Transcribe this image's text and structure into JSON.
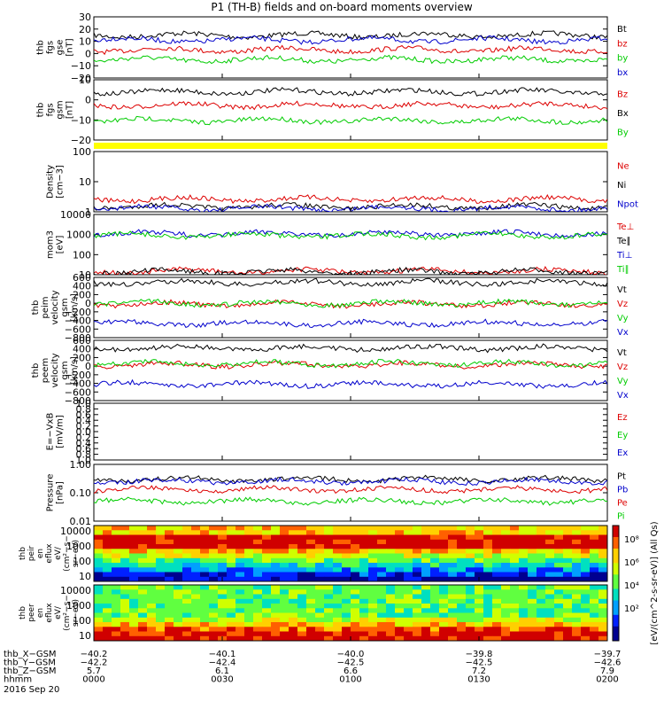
{
  "title": "P1 (TH-B) fields and on-board moments overview",
  "colors": {
    "black": "#000000",
    "red": "#dd0000",
    "green": "#00cc00",
    "blue": "#0000cc",
    "darkred": "#8b0000",
    "yellow": "#ffff00"
  },
  "chart_data": {
    "type": "line",
    "x_label": "hhmm",
    "date": "2016 Sep 20",
    "panels": [
      {
        "id": "fgs-gse",
        "ylabel": [
          "thb",
          "fgs",
          "gse",
          "[nT]"
        ],
        "scale": "linear",
        "ylim": [
          -20,
          30
        ],
        "ticks": [
          "30",
          "20",
          "10",
          "0",
          "−10",
          "−20"
        ],
        "series": [
          {
            "name": "Bt",
            "color": "black",
            "level": 15
          },
          {
            "name": "bz",
            "color": "red",
            "level": 3
          },
          {
            "name": "by",
            "color": "green",
            "level": -5
          },
          {
            "name": "bx",
            "color": "blue",
            "level": 11
          }
        ]
      },
      {
        "id": "fgs-gsm",
        "ylabel": [
          "thb",
          "fgs",
          "gsm",
          "[nT]"
        ],
        "scale": "linear",
        "ylim": [
          -20,
          20
        ],
        "ticks": [
          "10",
          "0",
          "−10",
          "−20"
        ],
        "series": [
          {
            "name": "Bz",
            "color": "red",
            "level": 3
          },
          {
            "name": "Bx",
            "color": "black",
            "level": 12
          },
          {
            "name": "By",
            "color": "green",
            "level": -7
          }
        ]
      },
      {
        "id": "density",
        "ylabel": [
          "Density",
          "[cm−3]"
        ],
        "scale": "log",
        "ylim": [
          1,
          100
        ],
        "ticks": [
          "100",
          "10",
          "1"
        ],
        "series": [
          {
            "name": "Ne",
            "color": "red",
            "level": 2.6
          },
          {
            "name": "Ni",
            "color": "black",
            "level": 1.5
          },
          {
            "name": "Npot",
            "color": "blue",
            "level": 1.3
          }
        ]
      },
      {
        "id": "temperature",
        "ylabel": [
          "mom3",
          "[eV]"
        ],
        "scale": "log",
        "ylim": [
          10,
          10000
        ],
        "ticks": [
          "10000",
          "1000",
          "100",
          "10"
        ],
        "series": [
          {
            "name": "Te⊥",
            "color": "red",
            "level": 15
          },
          {
            "name": "Te∥",
            "color": "black",
            "level": 14
          },
          {
            "name": "Ti⊥",
            "color": "blue",
            "level": 1100
          },
          {
            "name": "Ti∥",
            "color": "green",
            "level": 900
          }
        ]
      },
      {
        "id": "peim-velocity",
        "ylabel": [
          "thb",
          "peim",
          "velocity",
          "gsm",
          "[km/s]"
        ],
        "scale": "linear",
        "ylim": [
          -800,
          600
        ],
        "ticks": [
          "600",
          "400",
          "200",
          "0",
          "−200",
          "−400",
          "−600",
          "−800"
        ],
        "series": [
          {
            "name": "Vt",
            "color": "black",
            "level": 480
          },
          {
            "name": "Vz",
            "color": "red",
            "level": -20
          },
          {
            "name": "Vy",
            "color": "green",
            "level": 0
          },
          {
            "name": "Vx",
            "color": "blue",
            "level": -470
          }
        ]
      },
      {
        "id": "peem-velocity",
        "ylabel": [
          "thb",
          "peem",
          "velocity",
          "gsm",
          "[km/s]"
        ],
        "scale": "linear",
        "ylim": [
          -800,
          600
        ],
        "ticks": [
          "600",
          "400",
          "200",
          "0",
          "−200",
          "−400",
          "−600",
          "−800"
        ],
        "series": [
          {
            "name": "Vt",
            "color": "black",
            "level": 420
          },
          {
            "name": "Vz",
            "color": "red",
            "level": 30
          },
          {
            "name": "Vy",
            "color": "green",
            "level": 60
          },
          {
            "name": "Vx",
            "color": "blue",
            "level": -420
          }
        ]
      },
      {
        "id": "efield",
        "ylabel": [
          "E=−VxB",
          "[mV/m]"
        ],
        "scale": "linear",
        "ylim": [
          -1,
          1
        ],
        "ticks": [
          "1.0",
          "0.8",
          "0.6",
          "0.4",
          "0.2",
          "0.0",
          "0.2",
          "0.4",
          "0.6",
          "0.8",
          "1.0"
        ],
        "series": [
          {
            "name": "Ez",
            "color": "red"
          },
          {
            "name": "Ey",
            "color": "green"
          },
          {
            "name": "Ex",
            "color": "blue"
          }
        ]
      },
      {
        "id": "pressure",
        "ylabel": [
          "Pressure",
          "[nPa]"
        ],
        "scale": "log",
        "ylim": [
          0.01,
          1
        ],
        "ticks": [
          "1.00",
          "0.10",
          "0.01"
        ],
        "series": [
          {
            "name": "Pt",
            "color": "black",
            "level": 0.3
          },
          {
            "name": "Pb",
            "color": "blue",
            "level": 0.25
          },
          {
            "name": "Pe",
            "color": "red",
            "level": 0.13
          },
          {
            "name": "Pi",
            "color": "green",
            "level": 0.05
          }
        ]
      }
    ],
    "spectrograms": [
      {
        "id": "peir",
        "ylabel": [
          "thb",
          "peir",
          "en",
          "eflux",
          "eV/",
          "(cm²−s−",
          "sr−eV)"
        ],
        "ticks": [
          "10000",
          "1000",
          "100",
          "10"
        ]
      },
      {
        "id": "peer",
        "ylabel": [
          "thb",
          "peer",
          "en",
          "eflux",
          "eV/",
          "(cm²−s−",
          "sr−eV)"
        ],
        "ticks": [
          "10000",
          "1000",
          "100",
          "10"
        ]
      }
    ],
    "colorbar": {
      "ticks": [
        "10⁸",
        "10⁶",
        "10⁴",
        "10²"
      ],
      "label": "[eV/(cm^2-s-sr-eV)] (All Qs)"
    },
    "x_rows": [
      {
        "label": "thb_X−GSM",
        "values": [
          "−40.2",
          "−40.1",
          "−40.0",
          "−39.8",
          "−39.7"
        ]
      },
      {
        "label": "thb_Y−GSM",
        "values": [
          "−42.2",
          "−42.4",
          "−42.5",
          "−42.5",
          "−42.6"
        ]
      },
      {
        "label": "thb_Z−GSM",
        "values": [
          "5.7",
          "6.1",
          "6.6",
          "7.2",
          "7.9"
        ]
      },
      {
        "label": "hhmm",
        "values": [
          "0000",
          "0030",
          "0100",
          "0130",
          "0200"
        ]
      }
    ]
  }
}
